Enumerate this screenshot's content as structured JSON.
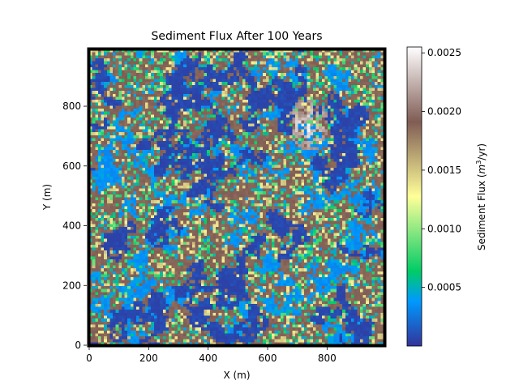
{
  "chart_data": {
    "type": "heatmap",
    "title": "Sediment Flux After 100 Years",
    "xlabel": "X (m)",
    "ylabel": "Y (m)",
    "xlim": [
      0,
      990
    ],
    "ylim": [
      0,
      990
    ],
    "x_ticks": [
      0,
      200,
      400,
      600,
      800
    ],
    "y_ticks": [
      0,
      200,
      400,
      600,
      800
    ],
    "x_tick_labels": [
      "0",
      "200",
      "400",
      "600",
      "800"
    ],
    "y_tick_labels": [
      "0",
      "200",
      "400",
      "600",
      "800"
    ],
    "grid": false,
    "grid_resolution": 100,
    "cell_size": 10,
    "colorbar": {
      "label": "Sediment Flux (m3/yr)",
      "label_main": "Sediment Flux (",
      "label_unit_base": "m",
      "label_unit_exp": "3",
      "label_unit_rest": "/yr)",
      "colormap": "terrain",
      "range": [
        0,
        0.00255
      ],
      "ticks": [
        0.0005,
        0.001,
        0.0015,
        0.002,
        0.0025
      ],
      "tick_labels": [
        "0.0005",
        "0.0010",
        "0.0015",
        "0.0020",
        "0.0025"
      ]
    },
    "note_values": "Per-cell values shown as pattern: channel network has low flux (0.0000–0.0005), hillslope cells mid (0.0016–0.0020), bright high-flux zone near x≈700–800, y≈700–800 (up to 0.0025)."
  }
}
